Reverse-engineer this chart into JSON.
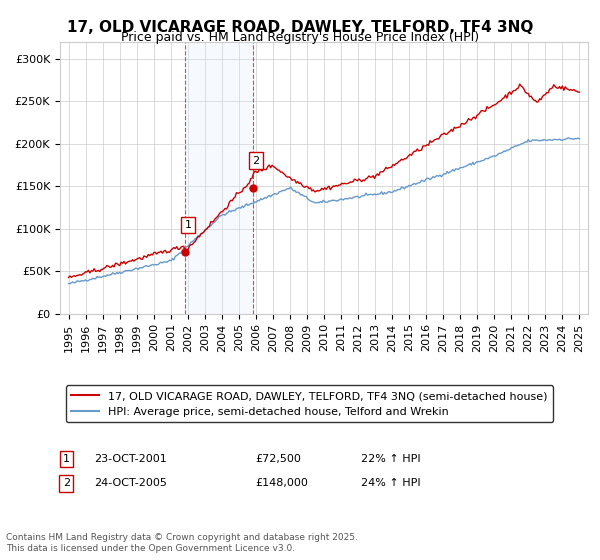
{
  "title": "17, OLD VICARAGE ROAD, DAWLEY, TELFORD, TF4 3NQ",
  "subtitle": "Price paid vs. HM Land Registry's House Price Index (HPI)",
  "legend_line1": "17, OLD VICARAGE ROAD, DAWLEY, TELFORD, TF4 3NQ (semi-detached house)",
  "legend_line2": "HPI: Average price, semi-detached house, Telford and Wrekin",
  "footer": "Contains HM Land Registry data © Crown copyright and database right 2025.\nThis data is licensed under the Open Government Licence v3.0.",
  "sale1_date": "23-OCT-2001",
  "sale1_price": "£72,500",
  "sale1_hpi": "22% ↑ HPI",
  "sale2_date": "24-OCT-2005",
  "sale2_price": "£148,000",
  "sale2_hpi": "24% ↑ HPI",
  "sale1_x": 2001.81,
  "sale1_y": 72500,
  "sale2_x": 2005.81,
  "sale2_y": 148000,
  "red_color": "#cc0000",
  "blue_color": "#6699cc",
  "shade_color": "#ddeeff",
  "vline_color": "#cc0000",
  "grid_color": "#cccccc",
  "background_color": "#ffffff",
  "ylim": [
    0,
    320000
  ],
  "xlim_start": 1994.5,
  "xlim_end": 2025.5,
  "title_fontsize": 11,
  "subtitle_fontsize": 9,
  "axis_fontsize": 8,
  "legend_fontsize": 8,
  "footer_fontsize": 6.5
}
